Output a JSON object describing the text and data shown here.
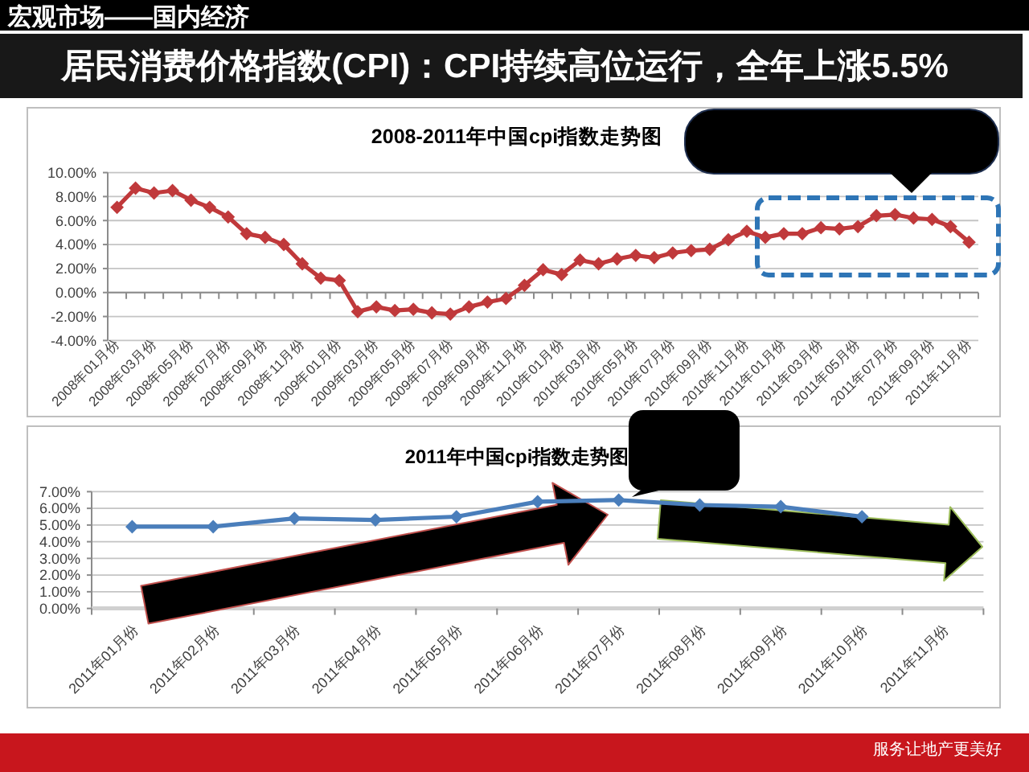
{
  "chart_data": [
    {
      "type": "line",
      "title": "2008-2011年中国cpi指数走势图",
      "categories": [
        "2008年01月份",
        null,
        "2008年03月份",
        null,
        "2008年05月份",
        null,
        "2008年07月份",
        null,
        "2008年09月份",
        null,
        "2008年11月份",
        null,
        "2009年01月份",
        null,
        "2009年03月份",
        null,
        "2009年05月份",
        null,
        "2009年07月份",
        null,
        "2009年09月份",
        null,
        "2009年11月份",
        null,
        "2010年01月份",
        null,
        "2010年03月份",
        null,
        "2010年05月份",
        null,
        "2010年07月份",
        null,
        "2010年09月份",
        null,
        "2010年11月份",
        null,
        "2011年01月份",
        null,
        "2011年03月份",
        null,
        "2011年05月份",
        null,
        "2011年07月份",
        null,
        "2011年09月份",
        null,
        "2011年11月份"
      ],
      "series": [
        {
          "color": "#c0393b",
          "values": [
            7.1,
            8.7,
            8.3,
            8.5,
            7.7,
            7.1,
            6.3,
            4.9,
            4.6,
            4.0,
            2.4,
            1.2,
            1.0,
            -1.6,
            -1.2,
            -1.5,
            -1.4,
            -1.7,
            -1.8,
            -1.2,
            -0.8,
            -0.5,
            0.6,
            1.9,
            1.5,
            2.7,
            2.4,
            2.8,
            3.1,
            2.9,
            3.3,
            3.5,
            3.6,
            4.4,
            5.1,
            4.6,
            4.9,
            4.9,
            5.4,
            5.3,
            5.5,
            6.4,
            6.5,
            6.2,
            6.1,
            5.5,
            4.2
          ]
        }
      ],
      "ylim": [
        -4,
        10
      ],
      "yticks": [
        {
          "value": -4,
          "label": "-4.00%"
        },
        {
          "value": -2,
          "label": "-2.00%"
        },
        {
          "value": 0,
          "label": "0.00%"
        },
        {
          "value": 2,
          "label": "2.00%"
        },
        {
          "value": 4,
          "label": "4.00%"
        },
        {
          "value": 6,
          "label": "6.00%"
        },
        {
          "value": 8,
          "label": "8.00%"
        },
        {
          "value": 10,
          "label": "10.00%"
        }
      ],
      "grid": "y",
      "marker": "diamond",
      "annotations": [
        "宏观市场——国内经济",
        "居民消费价格指数(CPI)：CPI持续高位运行，全年上涨5.5%"
      ]
    },
    {
      "type": "line",
      "title": "2011年中国cpi指数走势图",
      "categories": [
        "2011年01月份",
        "2011年02月份",
        "2011年03月份",
        "2011年04月份",
        "2011年05月份",
        "2011年06月份",
        "2011年07月份",
        "2011年08月份",
        "2011年09月份",
        "2011年10月份",
        "2011年11月份"
      ],
      "series": [
        {
          "color": "#4a7ebb",
          "values": [
            4.9,
            4.9,
            5.4,
            5.3,
            5.5,
            6.4,
            6.5,
            6.2,
            6.1,
            5.5,
            null
          ]
        }
      ],
      "ylim": [
        0,
        7
      ],
      "yticks": [
        {
          "value": 0,
          "label": "0.00%"
        },
        {
          "value": 1,
          "label": "1.00%"
        },
        {
          "value": 2,
          "label": "2.00%"
        },
        {
          "value": 3,
          "label": "3.00%"
        },
        {
          "value": 4,
          "label": "4.00%"
        },
        {
          "value": 5,
          "label": "5.00%"
        },
        {
          "value": 6,
          "label": "6.00%"
        },
        {
          "value": 7,
          "label": "7.00%"
        }
      ],
      "grid": "y",
      "marker": "diamond",
      "annotations": [
        "服务让地产更美好"
      ]
    }
  ]
}
